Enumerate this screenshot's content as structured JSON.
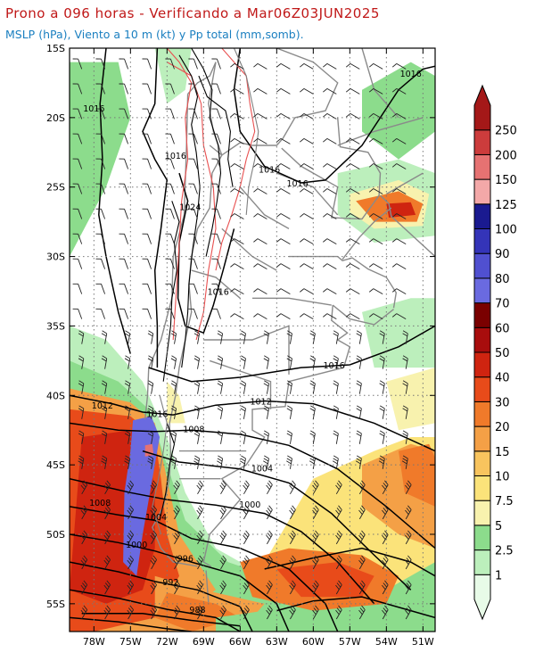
{
  "title_line1": "Prono a 096 horas - Verificando a Mar06Z03JUN2025",
  "title_line2": "MSLP (hPa), Viento a 10 m (kt) y Pp total (mm,somb).",
  "map": {
    "lon_range": [
      -80,
      -50
    ],
    "lat_range": [
      -57,
      -15
    ],
    "lon_ticks": [
      {
        "value": -78,
        "label": "78W"
      },
      {
        "value": -75,
        "label": "75W"
      },
      {
        "value": -72,
        "label": "72W"
      },
      {
        "value": -69,
        "label": "69W"
      },
      {
        "value": -66,
        "label": "66W"
      },
      {
        "value": -63,
        "label": "63W"
      },
      {
        "value": -60,
        "label": "60W"
      },
      {
        "value": -57,
        "label": "57W"
      },
      {
        "value": -54,
        "label": "54W"
      },
      {
        "value": -51,
        "label": "51W"
      }
    ],
    "lat_ticks": [
      {
        "value": -15,
        "label": "15S"
      },
      {
        "value": -20,
        "label": "20S"
      },
      {
        "value": -25,
        "label": "25S"
      },
      {
        "value": -30,
        "label": "30S"
      },
      {
        "value": -35,
        "label": "35S"
      },
      {
        "value": -40,
        "label": "40S"
      },
      {
        "value": -45,
        "label": "45S"
      },
      {
        "value": -50,
        "label": "50S"
      },
      {
        "value": -55,
        "label": "55S"
      }
    ],
    "isobar_labels": [
      {
        "text": "1016",
        "lon": -52.0,
        "lat": -16.9
      },
      {
        "text": "1016",
        "lon": -78.0,
        "lat": -19.4
      },
      {
        "text": "1016",
        "lon": -71.3,
        "lat": -22.8
      },
      {
        "text": "1016",
        "lon": -63.6,
        "lat": -23.8
      },
      {
        "text": "1016",
        "lon": -61.3,
        "lat": -24.8
      },
      {
        "text": "1024",
        "lon": -70.1,
        "lat": -26.5
      },
      {
        "text": "1016",
        "lon": -67.8,
        "lat": -32.6
      },
      {
        "text": "1016",
        "lon": -58.3,
        "lat": -37.9
      },
      {
        "text": "1012",
        "lon": -64.3,
        "lat": -40.5
      },
      {
        "text": "1012",
        "lon": -77.3,
        "lat": -40.8
      },
      {
        "text": "1016",
        "lon": -72.8,
        "lat": -41.4
      },
      {
        "text": "1008",
        "lon": -69.8,
        "lat": -42.5
      },
      {
        "text": "1004",
        "lon": -64.2,
        "lat": -45.3
      },
      {
        "text": "1000",
        "lon": -65.2,
        "lat": -47.9
      },
      {
        "text": "1008",
        "lon": -77.5,
        "lat": -47.8
      },
      {
        "text": "1004",
        "lon": -72.9,
        "lat": -48.8
      },
      {
        "text": "1000",
        "lon": -74.5,
        "lat": -50.8
      },
      {
        "text": "996",
        "lon": -70.5,
        "lat": -51.8
      },
      {
        "text": "992",
        "lon": -71.7,
        "lat": -53.5
      },
      {
        "text": "988",
        "lon": -69.5,
        "lat": -55.5
      }
    ]
  },
  "colorbar": {
    "levels": [
      "1",
      "2.5",
      "5",
      "7.5",
      "10",
      "15",
      "20",
      "30",
      "40",
      "50",
      "60",
      "70",
      "80",
      "90",
      "100",
      "125",
      "150",
      "200",
      "250"
    ],
    "colors": [
      "#e8fbe8",
      "#bcefbc",
      "#8cdc8c",
      "#f8f2ae",
      "#fbe37a",
      "#f8c45e",
      "#f4a046",
      "#f07a2a",
      "#e84b1a",
      "#cf2410",
      "#a80d0d",
      "#7a0000",
      "#6a6ae0",
      "#5050d0",
      "#3434b8",
      "#1a1a90",
      "#f3a8a8",
      "#e67272",
      "#cc3c3c",
      "#a41818"
    ]
  }
}
